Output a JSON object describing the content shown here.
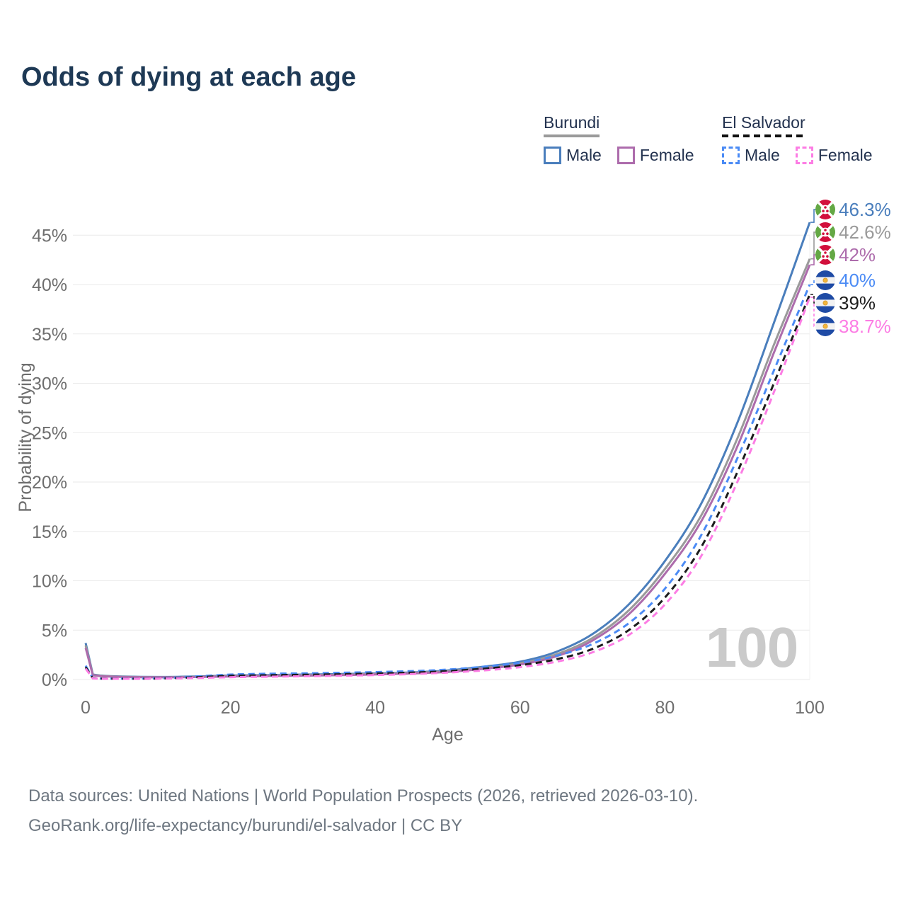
{
  "title": "Odds of dying at each age",
  "legend": {
    "groups": [
      {
        "name": "Burundi",
        "style": "solid",
        "underline_color": "#9a9a9a",
        "items": [
          {
            "label": "Male",
            "color": "#4a7ebc",
            "dashed": false
          },
          {
            "label": "Female",
            "color": "#ad6cac",
            "dashed": false
          }
        ]
      },
      {
        "name": "El Salvador",
        "style": "dashed",
        "underline_color": "#111111",
        "items": [
          {
            "label": "Male",
            "color": "#4b8bf5",
            "dashed": true
          },
          {
            "label": "Female",
            "color": "#fc7de4",
            "dashed": true
          }
        ]
      }
    ]
  },
  "chart_data": {
    "type": "line",
    "title": "Odds of dying at each age",
    "xlabel": "Age",
    "ylabel": "Probability of dying",
    "xlim": [
      0,
      100
    ],
    "ylim_percent": [
      0,
      48
    ],
    "grid": "horizontal",
    "legend_position": "top-right",
    "watermark": "100",
    "x_ticks": [
      0,
      20,
      40,
      60,
      80,
      100
    ],
    "y_ticks": [
      "0%",
      "5%",
      "10%",
      "15%",
      "20%",
      "25%",
      "30%",
      "35%",
      "40%",
      "45%"
    ],
    "x": [
      0,
      1,
      2,
      5,
      10,
      15,
      20,
      25,
      30,
      35,
      40,
      45,
      50,
      55,
      60,
      65,
      70,
      75,
      80,
      85,
      90,
      95,
      100
    ],
    "series": [
      {
        "id": "burundi-male",
        "country": "Burundi",
        "sex": "Male",
        "color": "#4a7ebc",
        "dash": false,
        "flag": "burundi",
        "icon": "burundi-flag-icon",
        "end_label": "46.3%",
        "values": [
          3.7,
          0.5,
          0.4,
          0.3,
          0.26,
          0.3,
          0.4,
          0.45,
          0.5,
          0.55,
          0.62,
          0.72,
          0.92,
          1.3,
          1.8,
          2.8,
          4.6,
          7.6,
          12.0,
          17.8,
          26.0,
          36.0,
          46.3
        ]
      },
      {
        "id": "burundi-both",
        "country": "Burundi",
        "sex": "Both",
        "color": "#9a9a9a",
        "dash": false,
        "flag": "burundi",
        "icon": "burundi-flag-icon",
        "end_label": "42.6%",
        "values": [
          3.45,
          0.46,
          0.37,
          0.28,
          0.24,
          0.27,
          0.35,
          0.4,
          0.44,
          0.49,
          0.56,
          0.66,
          0.84,
          1.18,
          1.65,
          2.55,
          4.2,
          7.0,
          11.2,
          16.6,
          24.4,
          33.8,
          42.6
        ]
      },
      {
        "id": "burundi-female",
        "country": "Burundi",
        "sex": "Female",
        "color": "#ad6cac",
        "dash": false,
        "flag": "burundi",
        "icon": "burundi-flag-icon",
        "end_label": "42%",
        "values": [
          3.2,
          0.43,
          0.34,
          0.26,
          0.22,
          0.25,
          0.31,
          0.35,
          0.39,
          0.44,
          0.51,
          0.61,
          0.77,
          1.08,
          1.52,
          2.35,
          3.95,
          6.6,
          10.7,
          16.0,
          23.6,
          33.0,
          42.0
        ]
      },
      {
        "id": "el-salvador-male",
        "country": "El Salvador",
        "sex": "Male",
        "color": "#4b8bf5",
        "dash": true,
        "flag": "el-salvador",
        "icon": "el-salvador-flag-icon",
        "end_label": "40%",
        "values": [
          1.4,
          0.14,
          0.1,
          0.09,
          0.12,
          0.3,
          0.5,
          0.58,
          0.62,
          0.68,
          0.75,
          0.85,
          1.0,
          1.3,
          1.7,
          2.4,
          3.6,
          5.7,
          9.2,
          14.6,
          22.4,
          31.2,
          40.0
        ]
      },
      {
        "id": "el-salvador-both",
        "country": "El Salvador",
        "sex": "Both",
        "color": "#1c1c1c",
        "dash": true,
        "flag": "el-salvador",
        "icon": "el-salvador-flag-icon",
        "end_label": "39%",
        "values": [
          1.25,
          0.12,
          0.09,
          0.08,
          0.1,
          0.22,
          0.37,
          0.43,
          0.48,
          0.53,
          0.6,
          0.7,
          0.85,
          1.1,
          1.45,
          2.05,
          3.1,
          5.0,
          8.3,
          13.4,
          21.0,
          29.9,
          39.0
        ]
      },
      {
        "id": "el-salvador-female",
        "country": "El Salvador",
        "sex": "Female",
        "color": "#fc7de4",
        "dash": true,
        "flag": "el-salvador",
        "icon": "el-salvador-flag-icon",
        "end_label": "38.7%",
        "values": [
          1.1,
          0.11,
          0.08,
          0.07,
          0.09,
          0.15,
          0.24,
          0.28,
          0.33,
          0.38,
          0.45,
          0.55,
          0.7,
          0.92,
          1.25,
          1.8,
          2.75,
          4.5,
          7.6,
          12.5,
          20.0,
          29.0,
          38.7
        ]
      }
    ]
  },
  "footer": {
    "line1": "Data sources: United Nations | World Population Prospects (2026, retrieved 2026-03-10).",
    "line2": "GeoRank.org/life-expectancy/burundi/el-salvador | CC BY"
  }
}
